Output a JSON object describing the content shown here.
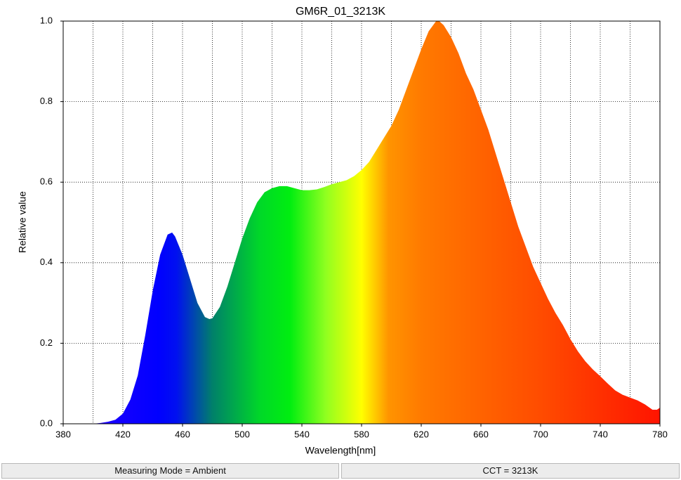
{
  "chart_data": {
    "type": "area",
    "title": "GM6R_01_3213K",
    "x_label": "Wavelength[nm]",
    "y_label": "Relative value",
    "x": [
      400,
      405,
      410,
      415,
      420,
      425,
      430,
      435,
      440,
      445,
      450,
      453,
      455,
      460,
      465,
      470,
      475,
      478,
      480,
      485,
      490,
      495,
      500,
      505,
      510,
      515,
      520,
      525,
      530,
      535,
      540,
      545,
      550,
      555,
      560,
      565,
      570,
      575,
      580,
      585,
      590,
      595,
      600,
      605,
      610,
      615,
      620,
      625,
      630,
      632,
      635,
      640,
      645,
      650,
      655,
      660,
      665,
      670,
      675,
      680,
      685,
      690,
      695,
      700,
      705,
      710,
      715,
      720,
      725,
      730,
      735,
      740,
      745,
      750,
      755,
      760,
      765,
      770,
      775,
      778,
      780
    ],
    "values": [
      0,
      0.002,
      0.005,
      0.01,
      0.025,
      0.06,
      0.12,
      0.22,
      0.33,
      0.42,
      0.47,
      0.475,
      0.465,
      0.42,
      0.36,
      0.3,
      0.265,
      0.26,
      0.262,
      0.29,
      0.34,
      0.4,
      0.46,
      0.51,
      0.55,
      0.575,
      0.585,
      0.59,
      0.59,
      0.585,
      0.58,
      0.58,
      0.582,
      0.588,
      0.595,
      0.6,
      0.605,
      0.615,
      0.63,
      0.65,
      0.68,
      0.71,
      0.74,
      0.78,
      0.83,
      0.88,
      0.93,
      0.975,
      1.0,
      1.0,
      0.99,
      0.96,
      0.92,
      0.87,
      0.83,
      0.78,
      0.73,
      0.67,
      0.61,
      0.55,
      0.49,
      0.44,
      0.39,
      0.35,
      0.31,
      0.275,
      0.245,
      0.21,
      0.18,
      0.155,
      0.135,
      0.118,
      0.1,
      0.083,
      0.072,
      0.065,
      0.058,
      0.048,
      0.035,
      0.035,
      0.04
    ],
    "xlim": [
      380,
      780
    ],
    "xticks": [
      380,
      420,
      460,
      500,
      540,
      580,
      620,
      660,
      700,
      740,
      780
    ],
    "x_gridlines": [
      400,
      420,
      440,
      460,
      480,
      500,
      520,
      540,
      560,
      580,
      600,
      620,
      640,
      660,
      680,
      700,
      720,
      740,
      760
    ],
    "ylim": [
      0,
      1
    ],
    "yticks": [
      {
        "value": 0,
        "label": "0.0"
      },
      0.2,
      0.4,
      0.6,
      0.8,
      {
        "value": 1,
        "label": "1.0"
      }
    ],
    "grid": true
  },
  "footer": {
    "measuring_mode": "Measuring Mode = Ambient",
    "cct": "CCT = 3213K"
  }
}
